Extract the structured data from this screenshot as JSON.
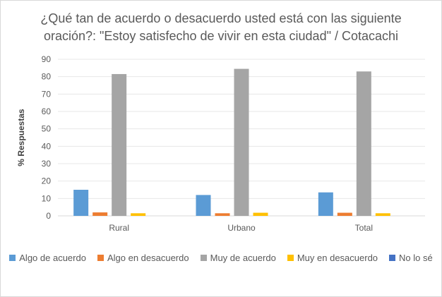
{
  "chart_data": {
    "type": "bar",
    "title_line1": "¿Qué tan de acuerdo o desacuerdo usted está con las siguiente",
    "title_line2": "oración?: \"Estoy satisfecho de vivir en esta ciudad\" / Cotacachi",
    "xlabel": "",
    "ylabel": "% Respuestas",
    "ylim": [
      0,
      90
    ],
    "yticks": [
      0,
      10,
      20,
      30,
      40,
      50,
      60,
      70,
      80,
      90
    ],
    "categories": [
      "Rural",
      "Urbano",
      "Total"
    ],
    "series": [
      {
        "name": "Algo de acuerdo",
        "color": "#5b9bd5",
        "values": [
          15,
          12,
          13.5
        ]
      },
      {
        "name": "Algo en desacuerdo",
        "color": "#ed7d31",
        "values": [
          2,
          1.5,
          1.8
        ]
      },
      {
        "name": "Muy de acuerdo",
        "color": "#a5a5a5",
        "values": [
          81.5,
          84.5,
          83
        ]
      },
      {
        "name": "Muy en desacuerdo",
        "color": "#ffc000",
        "values": [
          1.5,
          1.8,
          1.5
        ]
      },
      {
        "name": "No lo sé",
        "color": "#4472c4",
        "values": [
          0,
          0,
          0
        ]
      }
    ],
    "grid": true,
    "legend_position": "bottom"
  }
}
